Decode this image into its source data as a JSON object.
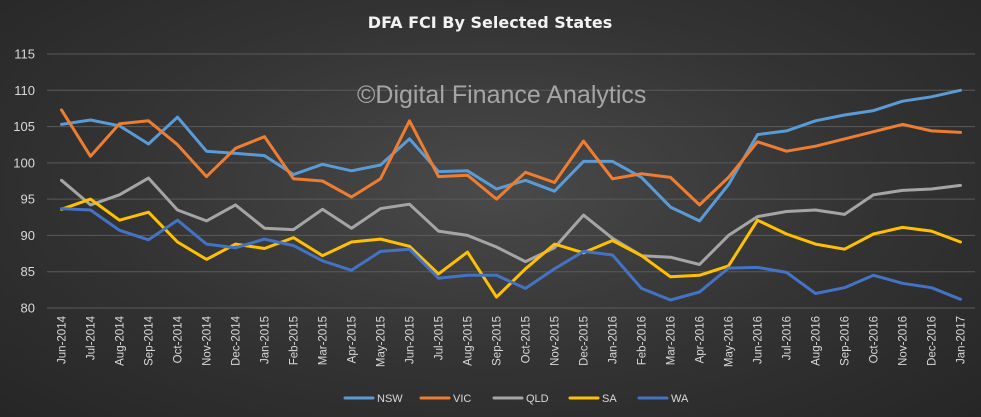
{
  "chart_data": {
    "type": "line",
    "title": "DFA FCI By Selected States",
    "watermark": "©Digital Finance Analytics",
    "xlabel": "",
    "ylabel": "",
    "ylim": [
      80,
      115
    ],
    "yticks": [
      80,
      85,
      90,
      95,
      100,
      105,
      110,
      115
    ],
    "grid": true,
    "legend_position": "bottom",
    "categories": [
      "Jun-2014",
      "Jul-2014",
      "Aug-2014",
      "Sep-2014",
      "Oct-2014",
      "Nov-2014",
      "Dec-2014",
      "Jan-2015",
      "Feb-2015",
      "Mar-2015",
      "Apr-2015",
      "May-2015",
      "Jun-2015",
      "Jul-2015",
      "Aug-2015",
      "Sep-2015",
      "Oct-2015",
      "Nov-2015",
      "Dec-2015",
      "Jan-2016",
      "Feb-2016",
      "Mar-2016",
      "Apr-2016",
      "May-2016",
      "Jun-2016",
      "Jul-2016",
      "Aug-2016",
      "Sep-2016",
      "Oct-2016",
      "Nov-2016",
      "Dec-2016",
      "Jan-2017"
    ],
    "series": [
      {
        "name": "NSW",
        "color": "#5b9bd5",
        "values": [
          105.3,
          105.9,
          105.1,
          102.6,
          106.3,
          101.6,
          101.3,
          101.0,
          98.4,
          99.8,
          98.9,
          99.7,
          103.3,
          98.8,
          98.9,
          96.4,
          97.6,
          96.1,
          100.2,
          100.2,
          98.0,
          93.9,
          92.0,
          97.0,
          103.9,
          104.4,
          105.8,
          106.6,
          107.2,
          108.5,
          109.1,
          110.0
        ]
      },
      {
        "name": "VIC",
        "color": "#ed7d31",
        "values": [
          107.3,
          100.9,
          105.4,
          105.8,
          102.5,
          98.1,
          102.0,
          103.6,
          97.8,
          97.5,
          95.3,
          97.8,
          105.8,
          98.1,
          98.3,
          95.0,
          98.7,
          97.3,
          103.0,
          97.8,
          98.5,
          98.0,
          94.2,
          98.0,
          102.9,
          101.6,
          102.3,
          103.3,
          104.3,
          105.3,
          104.4,
          104.2
        ]
      },
      {
        "name": "QLD",
        "color": "#a5a5a5",
        "values": [
          97.6,
          94.2,
          95.6,
          97.9,
          93.5,
          92.0,
          94.2,
          91.0,
          90.8,
          93.6,
          91.0,
          93.7,
          94.3,
          90.6,
          90.0,
          88.4,
          86.4,
          88.3,
          92.8,
          89.6,
          87.2,
          87.0,
          86.0,
          90.0,
          92.6,
          93.3,
          93.5,
          92.9,
          95.6,
          96.2,
          96.4,
          96.9
        ]
      },
      {
        "name": "SA",
        "color": "#ffc000",
        "values": [
          93.6,
          95.0,
          92.1,
          93.2,
          89.1,
          86.7,
          88.8,
          88.2,
          89.7,
          87.2,
          89.1,
          89.5,
          88.5,
          84.7,
          87.7,
          81.5,
          85.4,
          88.8,
          87.6,
          89.3,
          87.2,
          84.3,
          84.5,
          85.8,
          92.1,
          90.2,
          88.8,
          88.1,
          90.2,
          91.1,
          90.6,
          89.1
        ]
      },
      {
        "name": "WA",
        "color": "#4472c4",
        "values": [
          93.7,
          93.5,
          90.7,
          89.4,
          92.1,
          88.8,
          88.3,
          89.5,
          88.6,
          86.5,
          85.2,
          87.8,
          88.1,
          84.1,
          84.5,
          84.5,
          82.7,
          85.4,
          87.8,
          87.3,
          82.7,
          81.1,
          82.2,
          85.5,
          85.6,
          84.9,
          82.0,
          82.8,
          84.5,
          83.4,
          82.8,
          81.2
        ]
      }
    ]
  }
}
